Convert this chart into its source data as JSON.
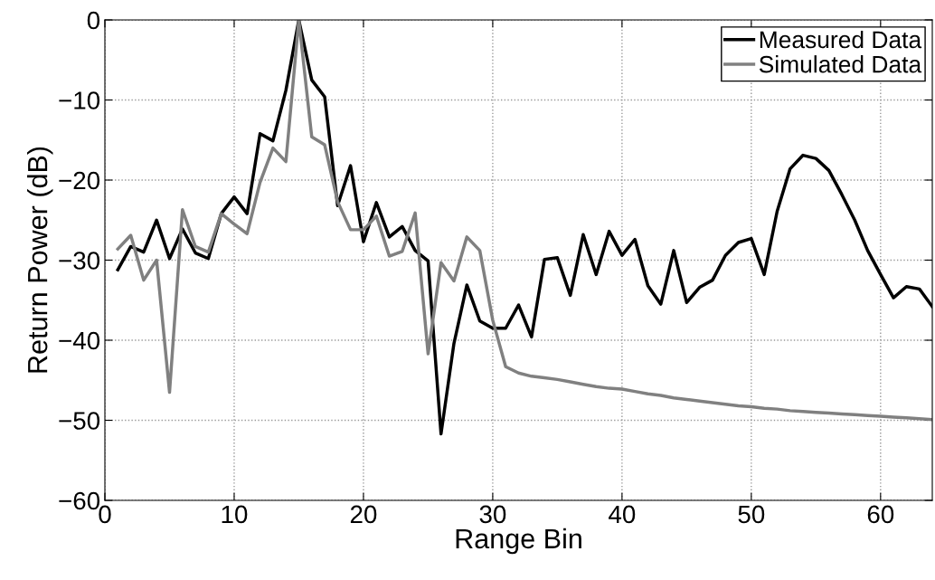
{
  "chart_data": {
    "type": "line",
    "xlabel": "Range Bin",
    "ylabel": "Return Power (dB)",
    "x": [
      1,
      2,
      3,
      4,
      5,
      6,
      7,
      8,
      9,
      10,
      11,
      12,
      13,
      14,
      15,
      16,
      17,
      18,
      19,
      20,
      21,
      22,
      23,
      24,
      25,
      26,
      27,
      28,
      29,
      30,
      31,
      32,
      33,
      34,
      35,
      36,
      37,
      38,
      39,
      40,
      41,
      42,
      43,
      44,
      45,
      46,
      47,
      48,
      49,
      50,
      51,
      52,
      53,
      54,
      55,
      56,
      57,
      58,
      59,
      60,
      61,
      62,
      63,
      64
    ],
    "series": [
      {
        "name": "Measured Data",
        "color": "#000000",
        "values": [
          -31.2,
          -28.3,
          -29.0,
          -25.0,
          -29.8,
          -26.1,
          -29.1,
          -29.8,
          -24.2,
          -22.1,
          -24.2,
          -14.2,
          -15.1,
          -8.8,
          0,
          -7.5,
          -9.6,
          -23.2,
          -18.2,
          -27.7,
          -22.8,
          -27.1,
          -25.8,
          -28.8,
          -30.1,
          -51.7,
          -40.4,
          -33.1,
          -37.6,
          -38.5,
          -38.5,
          -35.6,
          -39.6,
          -29.9,
          -29.7,
          -34.4,
          -26.8,
          -31.8,
          -26.4,
          -29.4,
          -27.4,
          -33.2,
          -35.5,
          -28.8,
          -35.3,
          -33.4,
          -32.5,
          -29.4,
          -27.8,
          -27.3,
          -31.8,
          -23.9,
          -18.6,
          -16.9,
          -17.3,
          -18.8,
          -21.8,
          -25.0,
          -28.8,
          -31.8,
          -34.7,
          -33.3,
          -33.6,
          -35.8
        ]
      },
      {
        "name": "Simulated Data",
        "color": "#808080",
        "values": [
          -28.6,
          -26.9,
          -32.5,
          -30.0,
          -46.5,
          -23.7,
          -28.3,
          -29.0,
          -24.2,
          -25.5,
          -26.7,
          -20.3,
          -16.0,
          -17.7,
          0,
          -14.6,
          -15.6,
          -22.7,
          -26.2,
          -26.2,
          -24.5,
          -29.5,
          -28.9,
          -24.1,
          -41.7,
          -30.3,
          -32.6,
          -27.1,
          -28.8,
          -37.5,
          -43.3,
          -44.1,
          -44.5,
          -44.7,
          -44.9,
          -45.2,
          -45.5,
          -45.8,
          -46.0,
          -46.1,
          -46.4,
          -46.7,
          -46.9,
          -47.2,
          -47.4,
          -47.6,
          -47.8,
          -48.0,
          -48.2,
          -48.3,
          -48.5,
          -48.6,
          -48.8,
          -48.9,
          -49.0,
          -49.1,
          -49.2,
          -49.3,
          -49.4,
          -49.5,
          -49.6,
          -49.7,
          -49.8,
          -49.9
        ]
      }
    ],
    "xlim": [
      0,
      64
    ],
    "xticks": [
      0,
      10,
      20,
      30,
      40,
      50,
      60
    ],
    "ylim": [
      -60,
      0
    ],
    "yticks": [
      {
        "value": -60,
        "label": "−60"
      },
      {
        "value": -50,
        "label": "−50"
      },
      {
        "value": -40,
        "label": "−40"
      },
      {
        "value": -30,
        "label": "−30"
      },
      {
        "value": -20,
        "label": "−20"
      },
      {
        "value": -10,
        "label": "−10"
      },
      0
    ],
    "grid": true,
    "legend": "top right",
    "marker": "none",
    "line_style": "solid"
  }
}
